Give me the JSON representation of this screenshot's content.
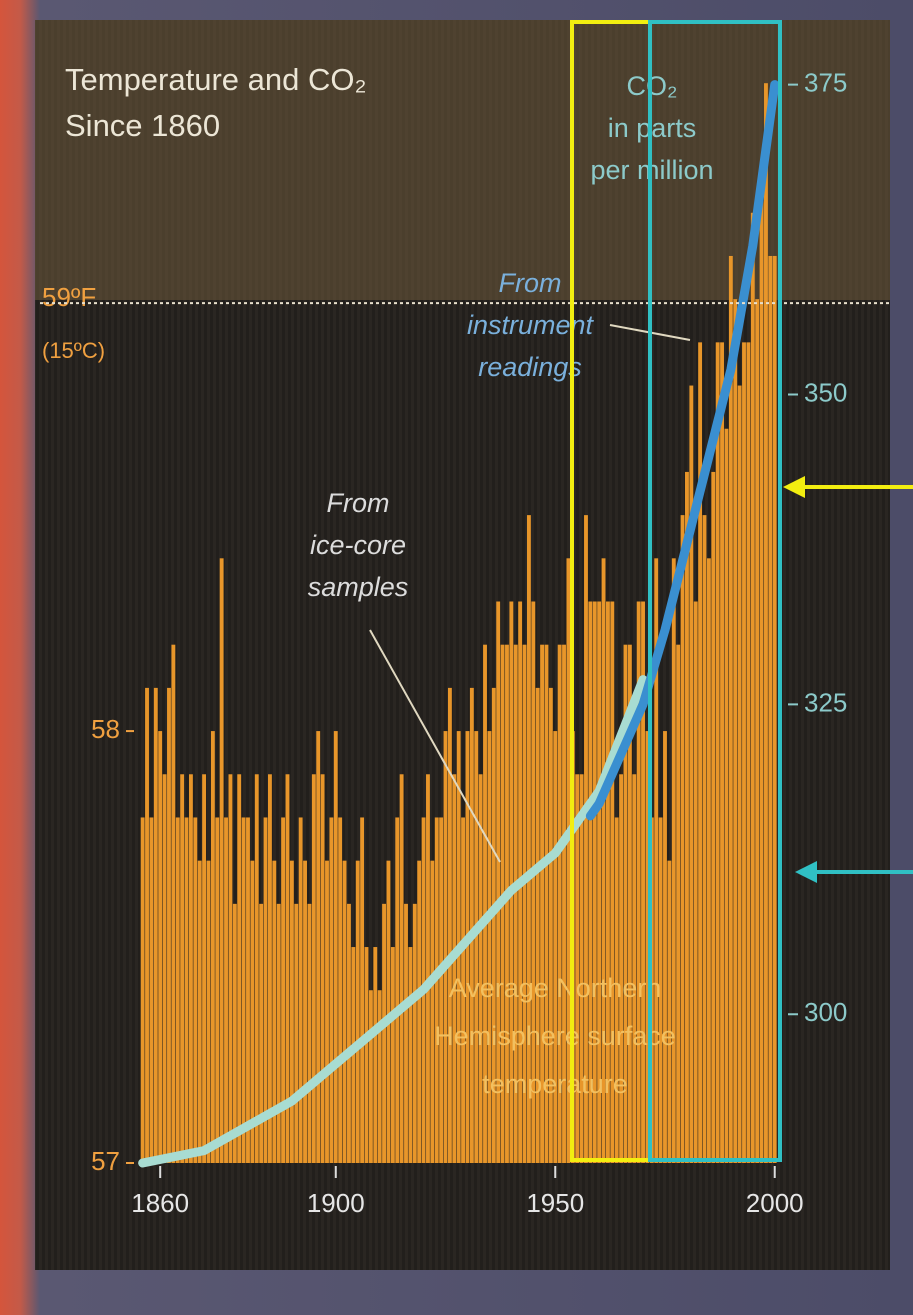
{
  "chart_data": {
    "type": "combo",
    "title": [
      "Temperature and CO₂",
      "Since 1860"
    ],
    "y2_label": [
      "CO₂",
      "in parts",
      "per million"
    ],
    "annotations": [
      {
        "text": [
          "From",
          "instrument",
          "readings"
        ]
      },
      {
        "text": [
          "From",
          "ice-core",
          "samples"
        ]
      },
      {
        "text": [
          "Average Northern",
          "Hemisphere surface",
          "temperature"
        ]
      },
      {
        "text": [
          "(15ºC)"
        ]
      }
    ],
    "xlim": [
      1855.4,
      2001.2
    ],
    "xticks": [
      1860,
      1900,
      1950,
      2000
    ],
    "ylim": [
      57,
      59.6
    ],
    "yticks": [
      57,
      58,
      {
        "value": 59,
        "label": "59ºF"
      }
    ],
    "y2lim": [
      288,
      378.6
    ],
    "y2ticks": [
      300,
      325,
      350,
      375
    ],
    "series": [
      {
        "type": "bar",
        "color": "#e8962a",
        "x": [
          1856,
          1857,
          1858,
          1859,
          1860,
          1861,
          1862,
          1863,
          1864,
          1865,
          1866,
          1867,
          1868,
          1869,
          1870,
          1871,
          1872,
          1873,
          1874,
          1875,
          1876,
          1877,
          1878,
          1879,
          1880,
          1881,
          1882,
          1883,
          1884,
          1885,
          1886,
          1887,
          1888,
          1889,
          1890,
          1891,
          1892,
          1893,
          1894,
          1895,
          1896,
          1897,
          1898,
          1899,
          1900,
          1901,
          1902,
          1903,
          1904,
          1905,
          1906,
          1907,
          1908,
          1909,
          1910,
          1911,
          1912,
          1913,
          1914,
          1915,
          1916,
          1917,
          1918,
          1919,
          1920,
          1921,
          1922,
          1923,
          1924,
          1925,
          1926,
          1927,
          1928,
          1929,
          1930,
          1931,
          1932,
          1933,
          1934,
          1935,
          1936,
          1937,
          1938,
          1939,
          1940,
          1941,
          1942,
          1943,
          1944,
          1945,
          1946,
          1947,
          1948,
          1949,
          1950,
          1951,
          1952,
          1953,
          1954,
          1955,
          1956,
          1957,
          1958,
          1959,
          1960,
          1961,
          1962,
          1963,
          1964,
          1965,
          1966,
          1967,
          1968,
          1969,
          1970,
          1971,
          1972,
          1973,
          1974,
          1975,
          1976,
          1977,
          1978,
          1979,
          1980,
          1981,
          1982,
          1983,
          1984,
          1985,
          1986,
          1987,
          1988,
          1989,
          1990,
          1991,
          1992,
          1993,
          1994,
          1995,
          1996,
          1997,
          1998,
          1999,
          2000
        ],
        "values": [
          57.8,
          58.1,
          57.8,
          58.1,
          58.0,
          57.9,
          58.1,
          58.2,
          57.8,
          57.9,
          57.8,
          57.9,
          57.8,
          57.7,
          57.9,
          57.7,
          58.0,
          57.8,
          58.4,
          57.8,
          57.9,
          57.6,
          57.9,
          57.8,
          57.8,
          57.7,
          57.9,
          57.6,
          57.8,
          57.9,
          57.7,
          57.6,
          57.8,
          57.9,
          57.7,
          57.6,
          57.8,
          57.7,
          57.6,
          57.9,
          58.0,
          57.9,
          57.7,
          57.8,
          58.0,
          57.8,
          57.7,
          57.6,
          57.5,
          57.7,
          57.8,
          57.5,
          57.4,
          57.5,
          57.4,
          57.6,
          57.7,
          57.5,
          57.8,
          57.9,
          57.6,
          57.5,
          57.6,
          57.7,
          57.8,
          57.9,
          57.7,
          57.8,
          57.8,
          58.0,
          58.1,
          57.9,
          58.0,
          57.8,
          58.0,
          58.1,
          58.0,
          57.9,
          58.2,
          58.0,
          58.1,
          58.3,
          58.2,
          58.2,
          58.3,
          58.2,
          58.3,
          58.2,
          58.5,
          58.3,
          58.1,
          58.2,
          58.2,
          58.1,
          58.0,
          58.2,
          58.2,
          58.4,
          58.0,
          57.9,
          57.9,
          58.5,
          58.3,
          58.3,
          58.3,
          58.4,
          58.3,
          58.3,
          57.8,
          57.9,
          58.2,
          58.2,
          57.9,
          58.3,
          58.3,
          58.0,
          57.8,
          58.4,
          57.8,
          58.0,
          57.7,
          58.4,
          58.2,
          58.5,
          58.6,
          58.8,
          58.3,
          58.9,
          58.5,
          58.4,
          58.6,
          58.9,
          58.9,
          58.7,
          59.1,
          59.0,
          58.8,
          58.9,
          58.9,
          59.2,
          59.0,
          59.3,
          59.5,
          59.1,
          59.1
        ]
      },
      {
        "type": "line",
        "axis": "y2",
        "color": "#a8dcd2",
        "x": [
          1856,
          1870,
          1880,
          1890,
          1900,
          1910,
          1920,
          1930,
          1940,
          1950,
          1960,
          1970
        ],
        "values": [
          288,
          289,
          291,
          293,
          296,
          299,
          302,
          306,
          310,
          313,
          318,
          327
        ]
      },
      {
        "type": "line",
        "axis": "y2",
        "color": "#3a8fd0",
        "x": [
          1958,
          1960,
          1965,
          1970,
          1975,
          1980,
          1985,
          1990,
          1995,
          2000
        ],
        "values": [
          316,
          317,
          321,
          325,
          331,
          338,
          345,
          352,
          362,
          375
        ]
      }
    ]
  }
}
